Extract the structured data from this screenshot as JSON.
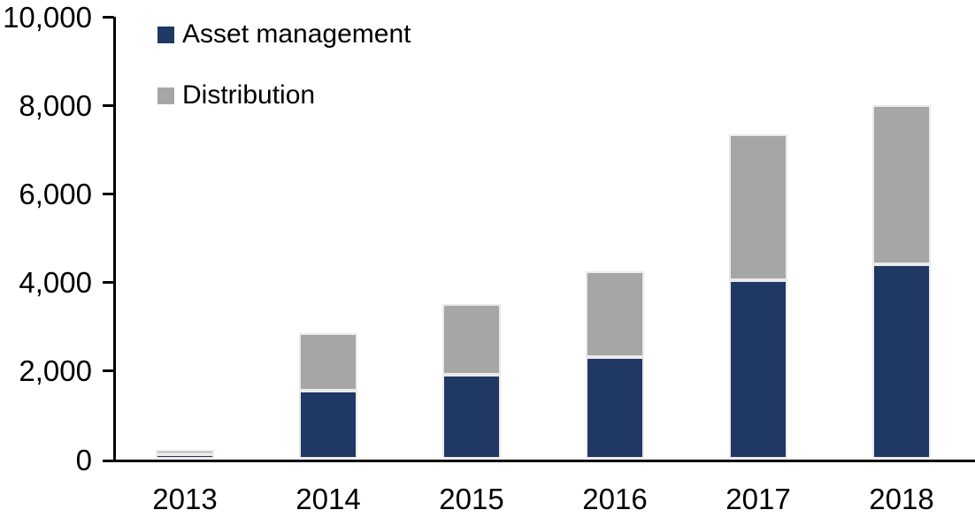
{
  "chart_data": {
    "type": "bar",
    "stacked": true,
    "title": "",
    "xlabel": "",
    "ylabel": "",
    "categories": [
      "2013",
      "2014",
      "2015",
      "2016",
      "2017",
      "2018"
    ],
    "series": [
      {
        "name": "Asset management",
        "color": "#1F3864",
        "values": [
          100,
          1550,
          1900,
          2300,
          4050,
          4400
        ]
      },
      {
        "name": "Distribution",
        "color": "#A6A6A6",
        "values": [
          100,
          1300,
          1600,
          1950,
          3300,
          3600
        ]
      }
    ],
    "totals": [
      200,
      2850,
      3500,
      4250,
      7350,
      8000
    ],
    "ylim": [
      0,
      10000
    ],
    "ytick_interval": 2000,
    "ytick_labels": [
      "0",
      "2,000",
      "4,000",
      "6,000",
      "8,000",
      "10,000"
    ],
    "grid": false,
    "legend_position": "top-left-inside"
  },
  "colors": {
    "axis": "#000000",
    "background": "#ffffff",
    "bar_border": "#eaeaea",
    "asset_management": "#1F3864",
    "distribution": "#A6A6A6"
  }
}
